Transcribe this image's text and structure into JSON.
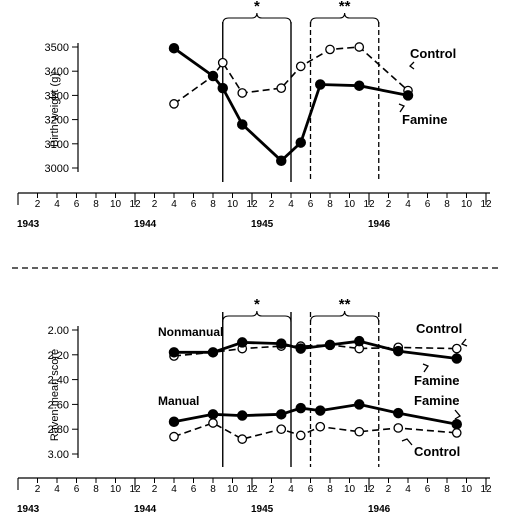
{
  "chart_data": [
    {
      "type": "line",
      "ylabel": "Birth weight (g)",
      "ylim": [
        3000,
        3500
      ],
      "yticks": [
        "3000",
        "3100",
        "3200",
        "3300",
        "3400",
        "3500"
      ],
      "x_tick_labels": [
        "2",
        "4",
        "6",
        "8",
        "10",
        "12",
        "2",
        "4",
        "6",
        "8",
        "10",
        "12",
        "2",
        "4",
        "6",
        "8",
        "10",
        "12",
        "2",
        "4",
        "6",
        "8",
        "10",
        "12"
      ],
      "years": [
        "1943",
        "1944",
        "1945",
        "1946"
      ],
      "bracket_labels": [
        "*",
        "**"
      ],
      "series": [
        {
          "name": "Control",
          "marker": "open",
          "x": [
            "1944-05",
            "1944-09",
            "1944-10",
            "1944-12",
            "1945-04",
            "1945-06",
            "1945-09",
            "1945-12",
            "1946-05"
          ],
          "y": [
            3265,
            3380,
            3435,
            3310,
            3330,
            3420,
            3490,
            3500,
            3320
          ]
        },
        {
          "name": "Famine",
          "marker": "filled",
          "x": [
            "1944-05",
            "1944-09",
            "1944-10",
            "1944-12",
            "1945-04",
            "1945-06",
            "1945-08",
            "1945-12",
            "1946-05"
          ],
          "y": [
            3495,
            3380,
            3330,
            3180,
            3030,
            3105,
            3345,
            3340,
            3300
          ]
        }
      ]
    },
    {
      "type": "line",
      "ylabel": "Raven mean score",
      "ylim": [
        2.0,
        3.0
      ],
      "y_inverted": true,
      "yticks": [
        "2.00",
        "2.20",
        "2.40",
        "2.60",
        "2.80",
        "3.00"
      ],
      "x_tick_labels": [
        "2",
        "4",
        "6",
        "8",
        "10",
        "12",
        "2",
        "4",
        "6",
        "8",
        "10",
        "12",
        "2",
        "4",
        "6",
        "8",
        "10",
        "12",
        "2",
        "4",
        "6",
        "8",
        "10",
        "12"
      ],
      "years": [
        "1943",
        "1944",
        "1945",
        "1946"
      ],
      "bracket_labels": [
        "*",
        "**"
      ],
      "group_labels": [
        "Nonmanual",
        "Manual"
      ],
      "series": [
        {
          "name": "Nonmanual Control",
          "marker": "open",
          "x": [
            "1944-05",
            "1944-09",
            "1944-12",
            "1945-04",
            "1945-06",
            "1945-09",
            "1945-12",
            "1946-04",
            "1946-10"
          ],
          "y": [
            2.21,
            2.18,
            2.15,
            2.13,
            2.13,
            2.12,
            2.15,
            2.14,
            2.15
          ]
        },
        {
          "name": "Nonmanual Famine",
          "marker": "filled",
          "x": [
            "1944-05",
            "1944-09",
            "1944-12",
            "1945-04",
            "1945-06",
            "1945-09",
            "1945-12",
            "1946-04",
            "1946-10"
          ],
          "y": [
            2.18,
            2.18,
            2.1,
            2.11,
            2.15,
            2.12,
            2.09,
            2.17,
            2.23
          ]
        },
        {
          "name": "Manual Famine",
          "marker": "filled",
          "x": [
            "1944-05",
            "1944-09",
            "1944-12",
            "1945-04",
            "1945-06",
            "1945-08",
            "1945-12",
            "1946-04",
            "1946-10"
          ],
          "y": [
            2.74,
            2.68,
            2.69,
            2.68,
            2.63,
            2.65,
            2.6,
            2.67,
            2.76
          ]
        },
        {
          "name": "Manual Control",
          "marker": "open",
          "x": [
            "1944-05",
            "1944-09",
            "1944-12",
            "1945-04",
            "1945-06",
            "1945-08",
            "1945-12",
            "1946-04",
            "1946-10"
          ],
          "y": [
            2.86,
            2.75,
            2.88,
            2.8,
            2.85,
            2.78,
            2.82,
            2.79,
            2.83
          ]
        }
      ]
    }
  ],
  "labels": {
    "top_control": "Control",
    "top_famine": "Famine",
    "bottom_nonmanual": "Nonmanual",
    "bottom_manual": "Manual",
    "bottom_control_upper": "Control",
    "bottom_famine_upper": "Famine",
    "bottom_famine_lower": "Famine",
    "bottom_control_lower": "Control"
  }
}
